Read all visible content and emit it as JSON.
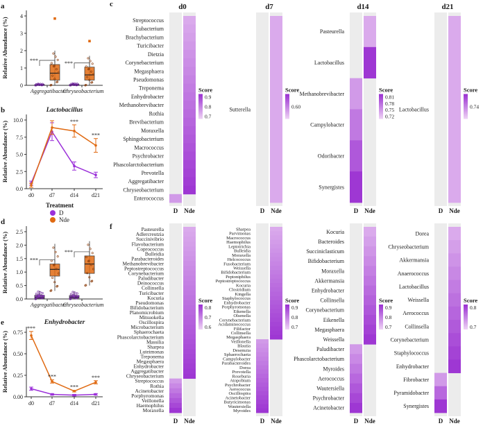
{
  "colors": {
    "D": "#9b30d9",
    "Nde": "#e06a12",
    "heat_low": "#efd3f5",
    "heat_high": "#9a2fd1",
    "empty": "#ececec",
    "axis": "#333333",
    "sig": "#1a1a1a"
  },
  "panels": {
    "a": {
      "letter": "a",
      "ylabel": "Relative Abundance (%)",
      "categories": [
        "Aggregatibacter",
        "Chryseobacterium"
      ],
      "yticks": [
        "0",
        "1",
        "2",
        "3",
        "4"
      ],
      "ylim": [
        0,
        4
      ],
      "sig": "***"
    },
    "b": {
      "letter": "b",
      "title": "Lactobacillus",
      "ylabel": "Relative Abundance (%)",
      "yticks": [
        "0.0",
        "2.5",
        "5.0",
        "7.5",
        "10.0"
      ],
      "ylim": [
        0,
        10
      ],
      "x": [
        "d0",
        "d7",
        "d14",
        "d21"
      ],
      "sig": "***"
    },
    "d": {
      "letter": "d",
      "ylabel": "Relative Abundance (%)",
      "categories": [
        "Aggregatibacter",
        "Chryseobacterium"
      ],
      "yticks": [
        "0.0",
        "0.5",
        "1.0",
        "1.5",
        "2.0",
        "2.5"
      ],
      "ylim": [
        0,
        2.5
      ],
      "sig": "***"
    },
    "e": {
      "letter": "e",
      "title": "Enhydrobacter",
      "ylabel": "Relative Abundance (%)",
      "yticks": [
        "0.00",
        "0.25",
        "0.50",
        "0.75"
      ],
      "ylim": [
        0,
        0.8
      ],
      "x": [
        "d0",
        "d7",
        "d14",
        "d21"
      ],
      "sig": "***"
    }
  },
  "legend": {
    "title": "Treatment",
    "items": [
      "D",
      "Nde"
    ]
  },
  "heatmaps": {
    "c_letter": "c",
    "f_letter": "f",
    "score_label": "Score",
    "col_labels": [
      "D",
      "Nde"
    ],
    "days": [
      "d0",
      "d7",
      "d14",
      "d21"
    ],
    "c": [
      {
        "day": "d0",
        "score_ticks": [
          "0.9",
          "0.8",
          "0.7"
        ],
        "score_range": [
          0.65,
          0.95
        ],
        "D": [
          "Enterococcus"
        ],
        "Nde": [
          "Streptococcus",
          "Eubacterium",
          "Brachybacterium",
          "Turicibacter",
          "Dietzia",
          "Corynebacterium",
          "Megasphaera",
          "Pseudomonas",
          "Treponema",
          "Enhydrobacter",
          "Methanobrevibacter",
          "Rothia",
          "Brevibacterium",
          "Moraxella",
          "Sphingobacterium",
          "Macrococcus",
          "Psychrobacter",
          "Phascolarctobacterium",
          "Prevotella",
          "Aggregatibacter",
          "Chryseobacterium"
        ]
      },
      {
        "day": "d7",
        "score_ticks": [
          "0.60"
        ],
        "score_range": [
          0.55,
          0.65
        ],
        "D": [],
        "Nde": [
          "Sutterella"
        ]
      },
      {
        "day": "d14",
        "score_ticks": [
          "0.81",
          "0.78",
          "0.75",
          "0.72"
        ],
        "score_range": [
          0.7,
          0.82
        ],
        "D": [
          "Methanobrevibacter",
          "Campylobacter",
          "Odoribacter",
          "Synergistes"
        ],
        "Nde": [
          "Pasteurella",
          "Lactobacillus"
        ]
      },
      {
        "day": "d21",
        "score_ticks": [
          "0.74"
        ],
        "score_range": [
          0.7,
          0.78
        ],
        "D": [],
        "Nde": [
          "Lactobacillus"
        ]
      }
    ],
    "f": [
      {
        "day": "d0",
        "score_ticks": [
          "0.8",
          "0.7",
          "0.6"
        ],
        "score_range": [
          0.55,
          0.85
        ],
        "Nde": [
          "Pasteurella",
          "Adlercreutzia",
          "Succinivibrio",
          "Flavobacterium",
          "Coprococcus",
          "Bulleidia",
          "Parabacteroides",
          "Methanobrevibacter",
          "Peptostreptococcus",
          "Corynebacterium",
          "Paludibacter",
          "Deinococcus",
          "Collinsella",
          "Turicibacter",
          "Kocuria",
          "Pseudomonas",
          "Bifidobacterium",
          "Planomicrobium",
          "Mitsuokella",
          "Oscillospira",
          "Microbacterium",
          "Sphaerochaeta",
          "Phascolarctobacterium",
          "Massilia",
          "Sharpea",
          "Luteimonas",
          "Treponema",
          "Megasphaera",
          "Enhydrobacter",
          "Aggregatibacter",
          "Chryseobacterium"
        ],
        "D": [
          "Streptococcus",
          "Rothia",
          "Acinetobacter",
          "Porphyromonas",
          "Veillonella",
          "Haemophilus",
          "Moraxella"
        ]
      },
      {
        "day": "d7",
        "score_ticks": [
          "0.9",
          "0.8",
          "0.7"
        ],
        "score_range": [
          0.65,
          0.95
        ],
        "Nde": [
          "Sharpea",
          "Parvimonas",
          "Macrococcus",
          "Haemophilus",
          "Leptotrichia",
          "Bulleidia",
          "Moraxella",
          "Helcococcus",
          "Fusobacterium",
          "Weissella",
          "Bifidobacterium",
          "Peptoniphilus",
          "Peptostreptococcus",
          "Kocuria",
          "Clostridium",
          "Kingella",
          "Staphylococcus",
          "Enhydrobacter",
          "Porphyromonas",
          "Eikenella",
          "Olsenella",
          "Corynebacterium",
          "Acidaminococcus",
          "Filifactor",
          "Collinsella",
          "Megasphaera"
        ],
        "D": [
          "Veillonella",
          "Blautia",
          "Desemzia",
          "Sphaerochaeta",
          "Campylobacter",
          "Parabacteroides",
          "Dorea",
          "Prevotella",
          "Roseburia",
          "Atopobium",
          "Psychrobacter",
          "Aerococcus",
          "Oscillospira",
          "Acinetobacter",
          "Butyricimonas",
          "Wautersiella",
          "Myroides"
        ]
      },
      {
        "day": "d14",
        "score_ticks": [
          "0.9",
          "0.8",
          "0.7"
        ],
        "score_range": [
          0.65,
          0.95
        ],
        "Nde": [
          "Kocuria",
          "Bacteroides",
          "Succiniclasticum",
          "Bifidobacterium",
          "Moraxella",
          "Akkermansia",
          "Enhydrobacter",
          "Collinsella",
          "Corynebacterium",
          "Eikenella",
          "Megasphaera",
          "Weissella"
        ],
        "D": [
          "Paludibacter",
          "Phascolarctobacterium",
          "Myroides",
          "Aerococcus",
          "Wautersiella",
          "Psychrobacter",
          "Acinetobacter"
        ]
      },
      {
        "day": "d21",
        "score_ticks": [
          "0.8",
          "0.7"
        ],
        "score_range": [
          0.65,
          0.85
        ],
        "Nde": [
          "Dorea",
          "Chryseobacterium",
          "Akkermansia",
          "Anaerococcus",
          "Lactobacillus",
          "Weissella",
          "Aerococcus",
          "Collinsella",
          "Corynebacterium",
          "Staphylococcus",
          "Enhydrobacter"
        ],
        "D": [
          "Fibrobacter",
          "Pyramidobacter",
          "Synergistes"
        ]
      }
    ]
  },
  "chart_data": [
    {
      "id": "a",
      "type": "box",
      "ylabel": "Relative Abundance (%)",
      "ylim": [
        0,
        4
      ],
      "categories": [
        "Aggregatibacter",
        "Chryseobacterium"
      ],
      "series": [
        {
          "name": "D",
          "stats": [
            {
              "q1": 0.0,
              "median": 0.02,
              "q3": 0.05,
              "lo": 0.0,
              "hi": 0.1
            },
            {
              "q1": 0.0,
              "median": 0.02,
              "q3": 0.05,
              "lo": 0.0,
              "hi": 0.12
            }
          ]
        },
        {
          "name": "Nde",
          "stats": [
            {
              "q1": 0.3,
              "median": 0.7,
              "q3": 1.2,
              "lo": 0.0,
              "hi": 2.0,
              "outlier": 3.85
            },
            {
              "q1": 0.3,
              "median": 0.6,
              "q3": 1.05,
              "lo": 0.0,
              "hi": 1.7,
              "outlier": 2.55
            }
          ]
        }
      ]
    },
    {
      "id": "b",
      "type": "line",
      "title": "Lactobacillus",
      "ylabel": "Relative Abundance (%)",
      "ylim": [
        0,
        10
      ],
      "x": [
        "d0",
        "d7",
        "d14",
        "d21"
      ],
      "series": [
        {
          "name": "D",
          "values": [
            0.8,
            8.3,
            3.3,
            2.0
          ],
          "err": [
            0.3,
            1.3,
            0.6,
            0.4
          ]
        },
        {
          "name": "Nde",
          "values": [
            0.5,
            8.9,
            8.4,
            6.3
          ],
          "err": [
            0.3,
            1.0,
            0.9,
            1.0
          ]
        }
      ]
    },
    {
      "id": "d",
      "type": "box",
      "ylabel": "Relative Abundance (%)",
      "ylim": [
        0,
        2.5
      ],
      "categories": [
        "Aggregatibacter",
        "Chryseobacterium"
      ],
      "series": [
        {
          "name": "D",
          "stats": [
            {
              "q1": 0.02,
              "median": 0.07,
              "q3": 0.14,
              "lo": 0.0,
              "hi": 0.3
            },
            {
              "q1": 0.03,
              "median": 0.07,
              "q3": 0.13,
              "lo": 0.0,
              "hi": 0.28
            }
          ]
        },
        {
          "name": "Nde",
          "stats": [
            {
              "q1": 0.85,
              "median": 1.1,
              "q3": 1.3,
              "lo": 0.3,
              "hi": 2.05
            },
            {
              "q1": 0.95,
              "median": 1.3,
              "q3": 1.6,
              "lo": 0.5,
              "hi": 2.15
            }
          ]
        }
      ]
    },
    {
      "id": "e",
      "type": "line",
      "title": "Enhydrobacter",
      "ylabel": "Relative Abundance (%)",
      "ylim": [
        0,
        0.8
      ],
      "x": [
        "d0",
        "d7",
        "d14",
        "d21"
      ],
      "series": [
        {
          "name": "D",
          "values": [
            0.1,
            0.03,
            0.02,
            0.03
          ],
          "err": [
            0.02,
            0.01,
            0.01,
            0.01
          ]
        },
        {
          "name": "Nde",
          "values": [
            0.76,
            0.19,
            0.07,
            0.18
          ],
          "err": [
            0.05,
            0.02,
            0.01,
            0.02
          ]
        }
      ]
    }
  ]
}
